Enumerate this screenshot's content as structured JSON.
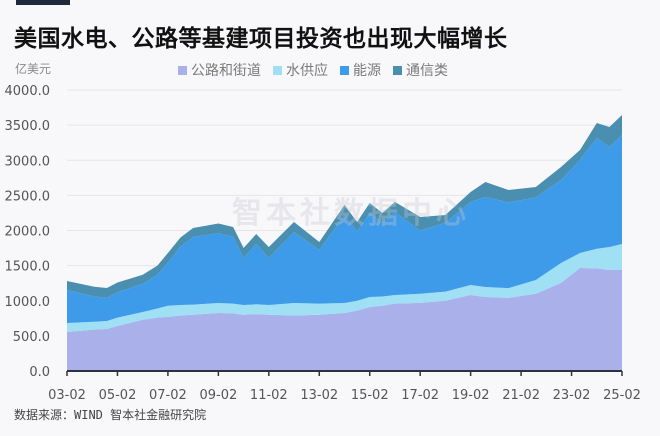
{
  "title": "美国水电、公路等基建项目投资也出现大幅增长",
  "unit_label": "亿美元",
  "source": "数据来源：WIND 智本社金融研究院",
  "watermark": "智本社数据中心",
  "legend": [
    {
      "label": "公路和街道",
      "color": "#a9b0ea"
    },
    {
      "label": "水供应",
      "color": "#9fe0f5"
    },
    {
      "label": "能源",
      "color": "#3d9be9"
    },
    {
      "label": "通信类",
      "color": "#4a8fb0"
    }
  ],
  "chart_data": {
    "type": "area",
    "stacked": true,
    "title": "美国水电、公路等基建项目投资也出现大幅增长",
    "xlabel": "",
    "ylabel": "亿美元",
    "ylim": [
      0,
      4000
    ],
    "yticks": [
      "0.0",
      "500.0",
      "1000.0",
      "1500.0",
      "2000.0",
      "2500.0",
      "3000.0",
      "3500.0",
      "4000.0"
    ],
    "xticks": [
      "03-02",
      "05-02",
      "07-02",
      "09-02",
      "11-02",
      "13-02",
      "15-02",
      "17-02",
      "19-02",
      "21-02",
      "23-02",
      "25-02"
    ],
    "grid": "horizontal",
    "legend_position": "top",
    "x": [
      "03-02",
      "04-03",
      "04-09",
      "05-02",
      "06-02",
      "06-09",
      "07-02",
      "07-08",
      "08-02",
      "09-02",
      "09-09",
      "10-02",
      "10-08",
      "11-02",
      "12-02",
      "13-02",
      "14-02",
      "14-08",
      "15-02",
      "15-08",
      "16-02",
      "17-02",
      "18-02",
      "19-02",
      "19-09",
      "20-08",
      "21-09",
      "22-09",
      "23-06",
      "24-02",
      "24-08",
      "25-02"
    ],
    "series": [
      {
        "name": "公路和街道",
        "values": [
          555,
          590,
          598,
          640,
          730,
          760,
          770,
          790,
          800,
          826,
          820,
          800,
          810,
          800,
          790,
          800,
          826,
          860,
          911,
          930,
          960,
          970,
          1000,
          1082,
          1053,
          1040,
          1100,
          1253,
          1466,
          1460,
          1438,
          1438
        ]
      },
      {
        "name": "水供应",
        "values": [
          128,
          110,
          114,
          120,
          110,
          130,
          160,
          150,
          145,
          142,
          140,
          140,
          140,
          140,
          178,
          160,
          142,
          140,
          142,
          130,
          122,
          130,
          130,
          142,
          143,
          140,
          195,
          284,
          214,
          280,
          327,
          370
        ]
      },
      {
        "name": "能源",
        "values": [
          470,
          360,
          327,
          360,
          400,
          480,
          610,
          830,
          962,
          992,
          950,
          669,
          860,
          669,
          1011,
          762,
          1253,
          990,
          1196,
          1050,
          1178,
          900,
          980,
          1182,
          1281,
          1220,
          1175,
          1182,
          1324,
          1577,
          1424,
          1551
        ]
      },
      {
        "name": "通信类",
        "values": [
          128,
          140,
          142,
          140,
          130,
          130,
          140,
          130,
          128,
          140,
          140,
          142,
          140,
          156,
          142,
          114,
          142,
          131,
          142,
          139,
          146,
          192,
          111,
          142,
          213,
          177,
          149,
          185,
          142,
          213,
          284,
          285
        ]
      }
    ]
  }
}
